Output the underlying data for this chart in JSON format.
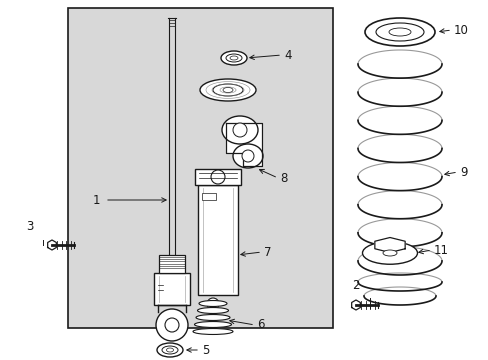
{
  "bg_color": "#ffffff",
  "box_bg": "#d8d8d8",
  "line_color": "#1a1a1a",
  "figsize": [
    4.89,
    3.6
  ],
  "dpi": 100
}
